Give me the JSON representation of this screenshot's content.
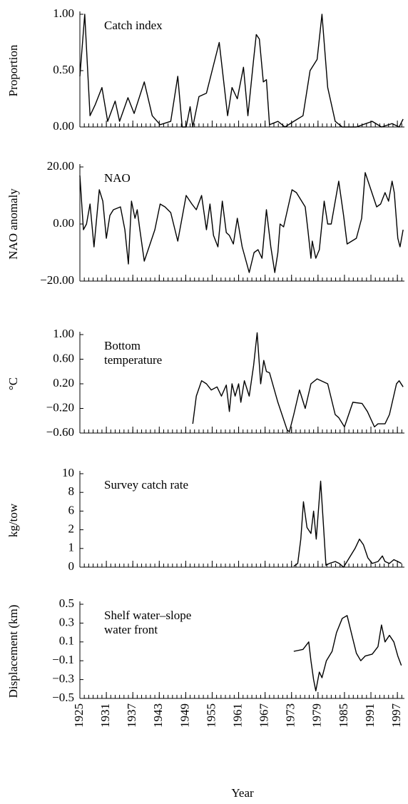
{
  "chart_data": [
    {
      "type": "line",
      "ylabel": "Proportion",
      "annotation": [
        "Catch index"
      ],
      "x": [
        1925.0,
        1926.1,
        1927.3,
        1928.5,
        1930.0,
        1931.3,
        1933.0,
        1934.0,
        1935.9,
        1937.3,
        1939.6,
        1941.4,
        1943.2,
        1945.6,
        1947.2,
        1948.2,
        1949.1,
        1950.0,
        1950.6,
        1952.0,
        1953.7,
        1956.6,
        1958.5,
        1959.5,
        1960.7,
        1962.1,
        1963.1,
        1964.4,
        1965.0,
        1965.7,
        1966.6,
        1967.3,
        1968.0,
        1969.9,
        1971.5,
        1973.5,
        1975.6,
        1977.2,
        1978.8,
        1979.9,
        1981.2,
        1982.9,
        1984.5,
        1987.7,
        1991.3,
        1993.4,
        1995.8,
        1997.4,
        1998.3
      ],
      "values": [
        0.45,
        1.0,
        0.1,
        0.2,
        0.35,
        0.05,
        0.23,
        0.05,
        0.26,
        0.12,
        0.4,
        0.1,
        0.02,
        0.05,
        0.45,
        0.0,
        0.0,
        0.18,
        0.0,
        0.27,
        0.3,
        0.75,
        0.1,
        0.35,
        0.25,
        0.53,
        0.1,
        0.6,
        0.82,
        0.78,
        0.4,
        0.42,
        0.02,
        0.05,
        0.0,
        0.05,
        0.1,
        0.5,
        0.6,
        1.0,
        0.35,
        0.05,
        0.0,
        0.0,
        0.05,
        0.0,
        0.03,
        0.0,
        0.07
      ],
      "color": "#000000",
      "xlim": [
        1925,
        1998.6
      ],
      "xticks": [
        1925,
        1931,
        1937,
        1943,
        1949,
        1955,
        1961,
        1967,
        1973,
        1979,
        1985,
        1991,
        1997
      ],
      "ylim": [
        0,
        1
      ],
      "yticks": [
        {
          "value": 0,
          "label": "0.00"
        },
        {
          "value": 0.5,
          "label": "0.50"
        },
        {
          "value": 1,
          "label": "1.00"
        }
      ]
    },
    {
      "type": "line",
      "ylabel": "NAO anomaly",
      "annotation": [
        "NAO"
      ],
      "x": [
        1925.0,
        1925.8,
        1926.5,
        1927.3,
        1928.2,
        1929.4,
        1930.2,
        1931.0,
        1931.8,
        1932.6,
        1934.2,
        1935.2,
        1936.0,
        1936.7,
        1937.5,
        1938.0,
        1938.6,
        1939.6,
        1940.7,
        1942.0,
        1943.2,
        1944.3,
        1945.6,
        1947.2,
        1949.1,
        1950.4,
        1951.4,
        1952.6,
        1953.7,
        1954.5,
        1955.3,
        1956.3,
        1957.3,
        1958.2,
        1958.9,
        1959.8,
        1960.7,
        1961.8,
        1963.4,
        1964.5,
        1965.4,
        1966.3,
        1967.3,
        1968.3,
        1969.2,
        1969.9,
        1970.4,
        1971.2,
        1973.1,
        1974.1,
        1976.1,
        1976.7,
        1977.4,
        1977.7,
        1978.5,
        1979.3,
        1980.4,
        1981.2,
        1982.0,
        1983.7,
        1984.8,
        1985.6,
        1987.7,
        1988.9,
        1989.7,
        1991.0,
        1992.3,
        1993.2,
        1994.2,
        1995.0,
        1995.8,
        1996.3,
        1997.1,
        1997.6,
        1998.3
      ],
      "values": [
        17,
        -2,
        0,
        7,
        -8,
        12,
        8,
        -5,
        3,
        5,
        6,
        -2,
        -14,
        8,
        2,
        5,
        -2,
        -13,
        -8,
        -2,
        7,
        6,
        4,
        -6,
        10,
        7,
        5,
        10,
        -2,
        7,
        -4,
        -8,
        8,
        -3,
        -4,
        -7,
        2,
        -8,
        -17,
        -10,
        -9,
        -12,
        5,
        -8,
        -17,
        -10,
        0,
        -1,
        12,
        11,
        6,
        -2,
        -12,
        -6,
        -12,
        -9,
        8,
        0,
        0,
        15,
        3,
        -7,
        -5,
        2,
        18,
        12,
        6,
        7,
        11,
        8,
        15,
        11,
        -5,
        -8,
        -2
      ],
      "color": "#000000",
      "xlim": [
        1925,
        1998.6
      ],
      "xticks": [
        1925,
        1931,
        1937,
        1943,
        1949,
        1955,
        1961,
        1967,
        1973,
        1979,
        1985,
        1991,
        1997
      ],
      "ylim": [
        -20,
        20
      ],
      "yticks": [
        {
          "value": -20,
          "label": "−20.00"
        },
        {
          "value": 0,
          "label": "0.00"
        },
        {
          "value": 20,
          "label": "20.00"
        }
      ]
    },
    {
      "type": "line",
      "ylabel": "°C",
      "annotation": [
        "Bottom",
        "temperature"
      ],
      "x": [
        1950.6,
        1951.4,
        1952.6,
        1953.7,
        1954.8,
        1956.1,
        1957.1,
        1958.2,
        1958.9,
        1959.5,
        1960.2,
        1961.0,
        1961.5,
        1962.3,
        1963.4,
        1964.4,
        1965.2,
        1966.0,
        1966.7,
        1967.3,
        1968.0,
        1969.9,
        1972.0,
        1972.5,
        1973.5,
        1974.8,
        1976.1,
        1977.4,
        1978.8,
        1981.2,
        1982.9,
        1983.7,
        1985.0,
        1986.9,
        1989.0,
        1990.2,
        1991.8,
        1992.6,
        1994.2,
        1995.2,
        1996.8,
        1997.4,
        1998.3
      ],
      "values": [
        -0.45,
        0.0,
        0.25,
        0.2,
        0.1,
        0.15,
        0.0,
        0.18,
        -0.25,
        0.2,
        0.0,
        0.2,
        -0.1,
        0.25,
        0.0,
        0.5,
        1.03,
        0.2,
        0.58,
        0.4,
        0.38,
        -0.1,
        -0.55,
        -0.58,
        -0.3,
        0.1,
        -0.2,
        0.2,
        0.28,
        0.2,
        -0.3,
        -0.35,
        -0.5,
        -0.1,
        -0.12,
        -0.25,
        -0.5,
        -0.45,
        -0.45,
        -0.3,
        0.2,
        0.25,
        0.15
      ],
      "color": "#000000",
      "xlim": [
        1925,
        1998.6
      ],
      "xticks": [
        1925,
        1931,
        1937,
        1943,
        1949,
        1955,
        1961,
        1967,
        1973,
        1979,
        1985,
        1991,
        1997
      ],
      "ylim": [
        -0.6,
        1
      ],
      "yticks": [
        {
          "value": -0.6,
          "label": "−0.60"
        },
        {
          "value": -0.2,
          "label": "−0.20"
        },
        {
          "value": 0.2,
          "label": "0.20"
        },
        {
          "value": 0.6,
          "label": "0.60"
        },
        {
          "value": 1,
          "label": "1.00"
        }
      ]
    },
    {
      "type": "line",
      "ylabel": "kg/tow",
      "annotation": [
        "Survey catch rate"
      ],
      "x": [
        1973.5,
        1974.4,
        1975.1,
        1975.7,
        1976.5,
        1977.4,
        1978.0,
        1978.6,
        1979.6,
        1980.3,
        1980.8,
        1981.6,
        1982.9,
        1983.8,
        1984.8,
        1986.1,
        1987.4,
        1988.4,
        1989.3,
        1990.3,
        1991.3,
        1992.6,
        1993.6,
        1994.2,
        1995.2,
        1996.2,
        1997.1,
        1997.9
      ],
      "values": [
        0.05,
        0.2,
        1.5,
        7,
        2.5,
        1.8,
        6,
        1.5,
        9.2,
        2,
        0.1,
        0.2,
        0.3,
        0.2,
        0.0,
        0.5,
        1,
        1.5,
        1.2,
        0.5,
        0.2,
        0.3,
        0.6,
        0.3,
        0.2,
        0.4,
        0.3,
        0.2
      ],
      "color": "#000000",
      "xlim": [
        1925,
        1998.6
      ],
      "xticks": [
        1925,
        1931,
        1937,
        1943,
        1949,
        1955,
        1961,
        1967,
        1973,
        1979,
        1985,
        1991,
        1997
      ],
      "ylim": [
        0,
        10
      ],
      "yticks": [
        0,
        1,
        2,
        6,
        8,
        10
      ]
    },
    {
      "type": "line",
      "ylabel": "Displacement (km)",
      "annotation": [
        "Shelf water–slope",
        "water front"
      ],
      "xlabel": "Year",
      "x": [
        1973.5,
        1975.6,
        1976.9,
        1977.4,
        1978.0,
        1978.5,
        1979.3,
        1979.9,
        1980.9,
        1982.2,
        1983.2,
        1984.5,
        1985.6,
        1986.8,
        1987.7,
        1988.7,
        1989.7,
        1991.3,
        1992.6,
        1993.4,
        1994.2,
        1995.2,
        1996.2,
        1997.1,
        1997.9
      ],
      "values": [
        0.0,
        0.02,
        0.1,
        -0.1,
        -0.3,
        -0.42,
        -0.22,
        -0.28,
        -0.1,
        0.0,
        0.2,
        0.35,
        0.38,
        0.15,
        -0.02,
        -0.1,
        -0.05,
        -0.03,
        0.05,
        0.28,
        0.1,
        0.17,
        0.1,
        -0.05,
        -0.15
      ],
      "color": "#000000",
      "xlim": [
        1925,
        1998.6
      ],
      "xticks": [
        1925,
        1931,
        1937,
        1943,
        1949,
        1955,
        1961,
        1967,
        1973,
        1979,
        1985,
        1991,
        1997
      ],
      "ylim": [
        -0.5,
        0.5
      ],
      "yticks": [
        {
          "value": -0.5,
          "label": "−0.5"
        },
        {
          "value": -0.3,
          "label": "−0.3"
        },
        {
          "value": -0.1,
          "label": "−0.1"
        },
        0.1,
        0.3,
        0.5
      ]
    }
  ]
}
